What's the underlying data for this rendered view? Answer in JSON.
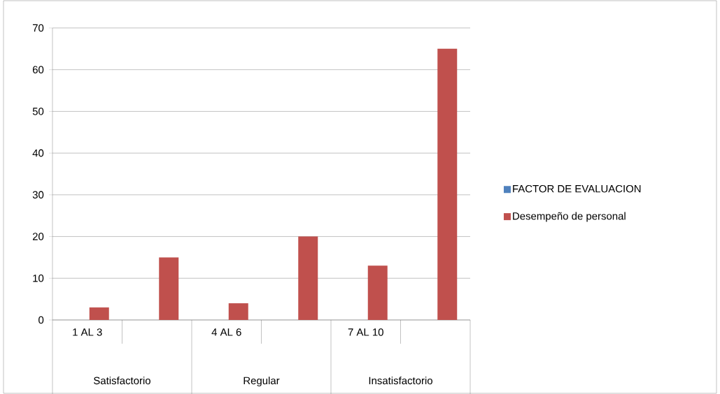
{
  "chart_data": {
    "type": "bar",
    "categories": [
      "1 AL 3",
      null,
      "4 AL 6",
      null,
      "7 AL 10",
      null
    ],
    "series": [
      {
        "name": "FACTOR  DE EVALUACION",
        "color": "#4f81bd",
        "values": [
          null,
          null,
          null,
          null,
          null,
          null
        ]
      },
      {
        "name": "Desempeño de personal",
        "color": "#c0504d",
        "values": [
          3,
          15,
          4,
          20,
          13,
          65
        ]
      }
    ],
    "annotations": [
      "Satisfactorio",
      "Regular",
      "Insatisfactorio"
    ],
    "ylim": [
      0,
      70
    ],
    "yticks": [
      0,
      10,
      20,
      30,
      40,
      50,
      60,
      70
    ],
    "grid": "y",
    "legend": "right"
  }
}
